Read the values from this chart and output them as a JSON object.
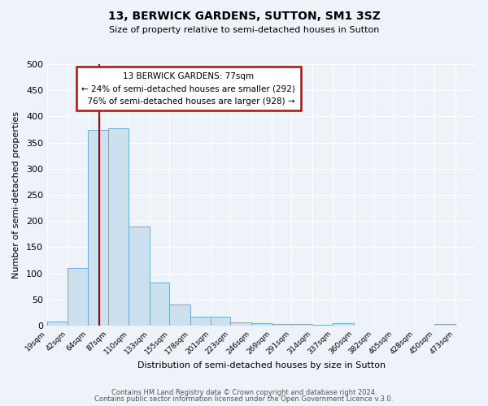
{
  "title": "13, BERWICK GARDENS, SUTTON, SM1 3SZ",
  "subtitle": "Size of property relative to semi-detached houses in Sutton",
  "xlabel": "Distribution of semi-detached houses by size in Sutton",
  "ylabel": "Number of semi-detached properties",
  "bin_labels": [
    "19sqm",
    "42sqm",
    "64sqm",
    "87sqm",
    "110sqm",
    "133sqm",
    "155sqm",
    "178sqm",
    "201sqm",
    "223sqm",
    "246sqm",
    "269sqm",
    "291sqm",
    "314sqm",
    "337sqm",
    "360sqm",
    "382sqm",
    "405sqm",
    "428sqm",
    "450sqm",
    "473sqm"
  ],
  "bar_values": [
    8,
    110,
    375,
    378,
    190,
    83,
    40,
    18,
    18,
    6,
    5,
    3,
    3,
    1,
    5,
    0,
    0,
    0,
    0,
    4,
    0
  ],
  "bin_edges": [
    19,
    42,
    64,
    87,
    110,
    133,
    155,
    178,
    201,
    223,
    246,
    269,
    291,
    314,
    337,
    360,
    382,
    405,
    428,
    450,
    473,
    496
  ],
  "property_size": 77,
  "property_label": "13 BERWICK GARDENS: 77sqm",
  "smaller_pct": 24,
  "smaller_count": 292,
  "larger_pct": 76,
  "larger_count": 928,
  "bar_color": "#cce0f0",
  "bar_edge_color": "#6aaed6",
  "vline_color": "#aa0000",
  "box_edge_color": "#cc0000",
  "background_color": "#eef2f9",
  "plot_bg_color": "#eef2f9",
  "ylim": [
    0,
    500
  ],
  "footer_line1": "Contains HM Land Registry data © Crown copyright and database right 2024.",
  "footer_line2": "Contains public sector information licensed under the Open Government Licence v.3.0."
}
